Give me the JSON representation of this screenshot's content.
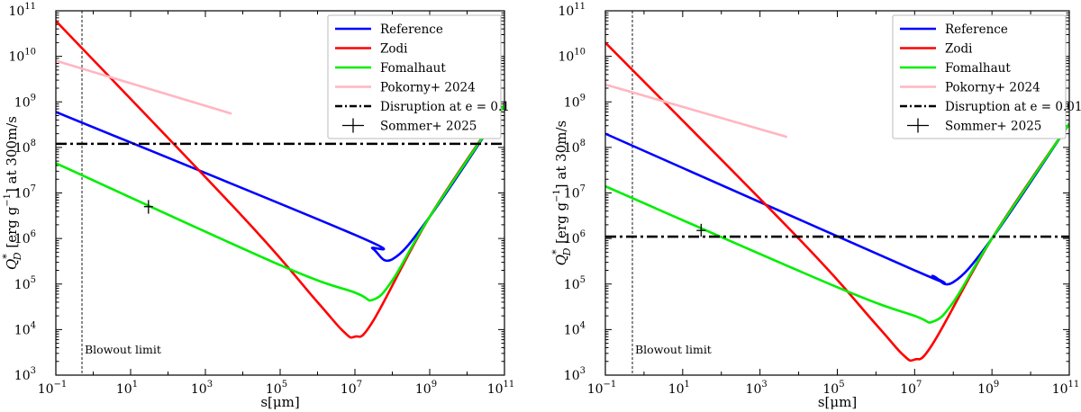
{
  "chart_data": [
    {
      "type": "line",
      "x_scale": "log",
      "y_scale": "log",
      "xlim": [
        0.1,
        100000000000.0
      ],
      "ylim": [
        1000,
        100000000000.0
      ],
      "xlabel": "s[μm]",
      "ylabel": "Q*_D [erg g⁻¹] at 300m/s",
      "ylabel_parts": {
        "q": "Q",
        "sup": "*",
        "sub": "D",
        "units": " [erg g",
        "unit_sup": "−1",
        "rest": "] at 300m/s"
      },
      "legend_location": "upper right",
      "x_ticks": [
        "10",
        "10",
        "10",
        "10",
        "10",
        "10",
        "10"
      ],
      "x_tick_exponents": [
        "−1",
        "1",
        "3",
        "5",
        "7",
        "9",
        "11"
      ],
      "y_ticks": [
        "10",
        "10",
        "10",
        "10",
        "10",
        "10",
        "10",
        "10",
        "10"
      ],
      "y_tick_exponents": [
        "3",
        "4",
        "5",
        "6",
        "7",
        "8",
        "9",
        "10",
        "11"
      ],
      "blowout": {
        "x": 0.5,
        "label": "Blowout limit"
      },
      "series": [
        {
          "name": "Reference",
          "color": "#0000ff",
          "style": "solid",
          "x": [
            0.1,
            10000000.0,
            30000000.0,
            100000000.0,
            1000000000.0,
            100000000000.0
          ],
          "y": [
            600000000,
            1200000,
            600000,
            350000,
            3000000,
            850000000
          ]
        },
        {
          "name": "Zodi",
          "color": "#ff0000",
          "style": "solid",
          "x": [
            0.1,
            10000.0,
            1000000.0,
            5000000.0,
            10000000.0,
            30000000.0,
            1000000000.0,
            100000000000.0
          ],
          "y": [
            60000000000,
            3000000,
            40000,
            9000,
            7000,
            15000,
            3000000,
            850000000
          ]
        },
        {
          "name": "Fomalhaut",
          "color": "#00ee00",
          "style": "solid",
          "x": [
            0.1,
            100000.0,
            10000000.0,
            30000000.0,
            100000000.0,
            1000000000.0,
            100000000000.0
          ],
          "y": [
            45000000,
            260000,
            65000,
            45000,
            120000,
            3000000,
            850000000
          ]
        },
        {
          "name": "Pokorny+ 2024",
          "color": "#ffb6c1",
          "style": "solid",
          "x": [
            0.1,
            5000
          ],
          "y": [
            8000000000,
            550000000
          ]
        },
        {
          "name": "Disruption at e = 0.1",
          "color": "#000000",
          "style": "dashdot",
          "x": [
            0.1,
            100000000000.0
          ],
          "y": [
            120000000,
            120000000
          ]
        }
      ],
      "marker": {
        "name": "Sommer+ 2025",
        "x": 30,
        "y": 5000000,
        "yerr_low": 3500000,
        "yerr_high": 7000000
      }
    },
    {
      "type": "line",
      "x_scale": "log",
      "y_scale": "log",
      "xlim": [
        0.1,
        100000000000.0
      ],
      "ylim": [
        1000,
        100000000000.0
      ],
      "xlabel": "s[μm]",
      "ylabel": "Q*_D [erg g⁻¹] at 30m/s",
      "ylabel_parts": {
        "q": "Q",
        "sup": "*",
        "sub": "D",
        "units": " [erg g",
        "unit_sup": "−1",
        "rest": "] at 30m/s"
      },
      "legend_location": "upper right",
      "x_ticks": [
        "10",
        "10",
        "10",
        "10",
        "10",
        "10",
        "10"
      ],
      "x_tick_exponents": [
        "−1",
        "1",
        "3",
        "5",
        "7",
        "9",
        "11"
      ],
      "y_ticks": [
        "10",
        "10",
        "10",
        "10",
        "10",
        "10",
        "10",
        "10",
        "10"
      ],
      "y_tick_exponents": [
        "3",
        "4",
        "5",
        "6",
        "7",
        "8",
        "9",
        "10",
        "11"
      ],
      "blowout": {
        "x": 0.5,
        "label": "Blowout limit"
      },
      "series": [
        {
          "name": "Reference",
          "color": "#0000ff",
          "style": "solid",
          "x": [
            0.1,
            10000000.0,
            30000000.0,
            100000000.0,
            1000000000.0,
            100000000000.0
          ],
          "y": [
            200000000,
            200000,
            150000,
            110000,
            1000000,
            330000000
          ]
        },
        {
          "name": "Zodi",
          "color": "#ff0000",
          "style": "solid",
          "x": [
            0.1,
            10000.0,
            1000000.0,
            5000000.0,
            10000000.0,
            30000000.0,
            1000000000.0,
            100000000000.0
          ],
          "y": [
            20000000000,
            1000000,
            13000,
            2800,
            2200,
            5000,
            1000000,
            330000000
          ]
        },
        {
          "name": "Fomalhaut",
          "color": "#00ee00",
          "style": "solid",
          "x": [
            0.1,
            100000.0,
            10000000.0,
            30000000.0,
            100000000.0,
            1000000000.0,
            100000000000.0
          ],
          "y": [
            14000000,
            85000,
            20000,
            15000,
            40000,
            1000000,
            330000000
          ]
        },
        {
          "name": "Pokorny+ 2024",
          "color": "#ffb6c1",
          "style": "solid",
          "x": [
            0.1,
            5000
          ],
          "y": [
            2400000000,
            170000000
          ]
        },
        {
          "name": "Disruption at e = 0.01",
          "color": "#000000",
          "style": "dashdot",
          "x": [
            0.1,
            100000000000.0
          ],
          "y": [
            1100000,
            1100000
          ]
        }
      ],
      "marker": {
        "name": "Sommer+ 2025",
        "x": 30,
        "y": 1500000,
        "yerr_low": 1100000,
        "yerr_high": 2100000
      }
    }
  ]
}
